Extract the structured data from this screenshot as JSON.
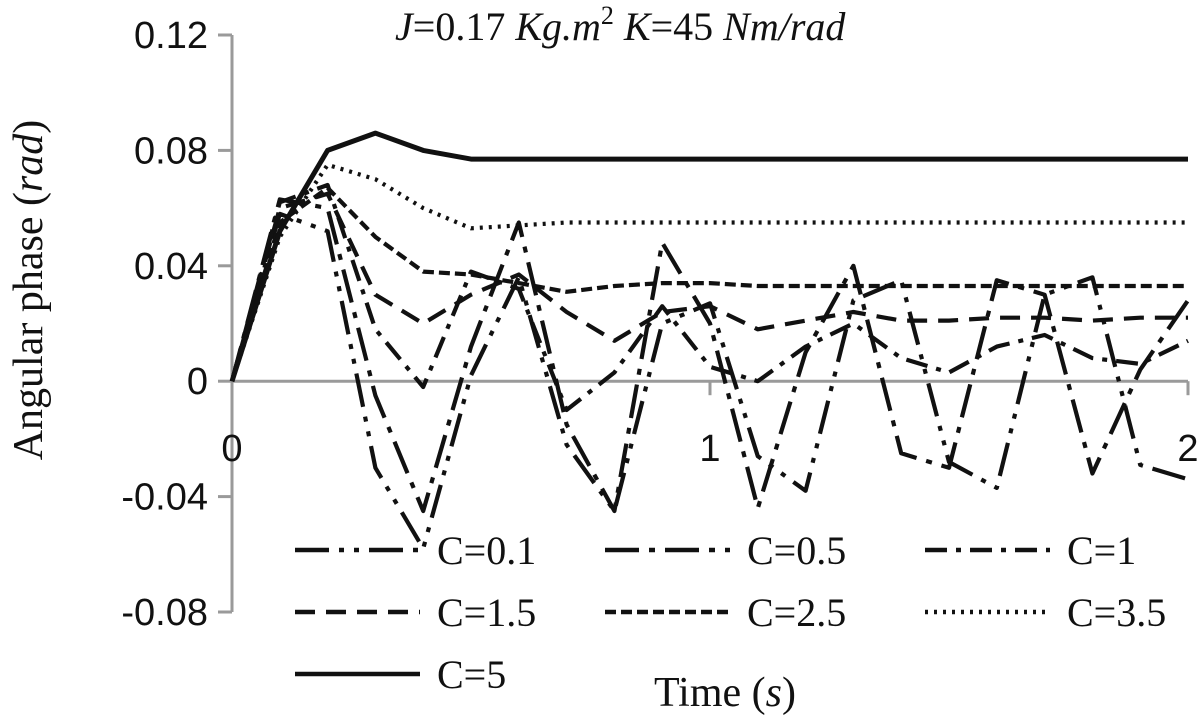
{
  "chart_data": {
    "type": "line",
    "title": "J=0.17 Kg.m² K=45 Nm/rad",
    "title_parts": {
      "j": "J",
      "j_value": "=0.17 ",
      "j_unit": "Kg.m",
      "j_exp": "2",
      "k": " K",
      "k_value": "=45 ",
      "k_unit": "Nm/rad"
    },
    "xlabel": "Time (s)",
    "xlabel_parts": {
      "text": "Time (",
      "unit": "s",
      "close": ")"
    },
    "ylabel": "Angular phase (rad)",
    "ylabel_parts": {
      "text": "Angular phase (",
      "unit": "rad",
      "close": ")"
    },
    "xlim": [
      0,
      2
    ],
    "ylim": [
      -0.08,
      0.12
    ],
    "x_ticks": [
      "0",
      "1",
      "2"
    ],
    "y_ticks": [
      "0.12",
      "0.08",
      "0.04",
      "0",
      "-0.04",
      "-0.08"
    ],
    "grid": false,
    "legend_position": "bottom",
    "series": [
      {
        "name": "C=0.1",
        "dash": "long-dash-dot-dot",
        "x": [
          0.0,
          0.1,
          0.2,
          0.3,
          0.4,
          0.5,
          0.6,
          0.7,
          0.8,
          0.9,
          1.0,
          1.1,
          1.2,
          1.3,
          1.4,
          1.5,
          1.6,
          1.7,
          1.8,
          1.9,
          2.0
        ],
        "y": [
          0.0,
          0.058,
          0.052,
          -0.03,
          -0.058,
          0.002,
          0.036,
          -0.022,
          -0.045,
          0.02,
          0.027,
          -0.026,
          -0.038,
          0.028,
          0.035,
          -0.028,
          -0.037,
          0.03,
          0.036,
          -0.029,
          -0.034
        ]
      },
      {
        "name": "C=0.5",
        "dash": "long-dash-dot",
        "x": [
          0.0,
          0.1,
          0.2,
          0.3,
          0.4,
          0.5,
          0.6,
          0.7,
          0.8,
          0.9,
          1.0,
          1.1,
          1.2,
          1.3,
          1.4,
          1.5,
          1.6,
          1.7,
          1.8,
          1.9,
          2.0
        ],
        "y": [
          0.0,
          0.063,
          0.06,
          -0.005,
          -0.045,
          0.012,
          0.055,
          -0.015,
          -0.045,
          0.048,
          0.02,
          -0.044,
          0.01,
          0.04,
          -0.025,
          -0.03,
          0.035,
          0.03,
          -0.032,
          0.004,
          0.028
        ]
      },
      {
        "name": "C=1",
        "dash": "dash-dot",
        "x": [
          0.0,
          0.1,
          0.2,
          0.3,
          0.4,
          0.5,
          0.6,
          0.7,
          0.8,
          0.9,
          1.0,
          1.1,
          1.2,
          1.3,
          1.4,
          1.5,
          1.6,
          1.7,
          1.8,
          1.9,
          2.0
        ],
        "y": [
          0.0,
          0.062,
          0.068,
          0.018,
          -0.002,
          0.038,
          0.032,
          -0.01,
          0.003,
          0.026,
          0.005,
          0.0,
          0.012,
          0.02,
          0.008,
          0.003,
          0.012,
          0.016,
          0.008,
          0.006,
          0.014
        ]
      },
      {
        "name": "C=1.5",
        "dash": "dash",
        "x": [
          0.0,
          0.1,
          0.2,
          0.3,
          0.4,
          0.5,
          0.6,
          0.7,
          0.8,
          0.9,
          1.0,
          1.1,
          1.2,
          1.3,
          1.4,
          1.5,
          1.6,
          1.7,
          1.8,
          1.9,
          2.0
        ],
        "y": [
          0.0,
          0.06,
          0.065,
          0.03,
          0.02,
          0.03,
          0.037,
          0.024,
          0.014,
          0.024,
          0.026,
          0.018,
          0.021,
          0.024,
          0.021,
          0.021,
          0.022,
          0.022,
          0.021,
          0.022,
          0.022
        ]
      },
      {
        "name": "C=2.5",
        "dash": "short-dash",
        "x": [
          0.0,
          0.1,
          0.2,
          0.3,
          0.4,
          0.5,
          0.6,
          0.7,
          0.8,
          0.9,
          1.0,
          1.1,
          1.2,
          1.3,
          1.4,
          1.5,
          1.6,
          1.7,
          1.8,
          1.9,
          2.0
        ],
        "y": [
          0.0,
          0.055,
          0.067,
          0.05,
          0.038,
          0.037,
          0.034,
          0.031,
          0.033,
          0.034,
          0.034,
          0.033,
          0.033,
          0.033,
          0.033,
          0.033,
          0.033,
          0.033,
          0.033,
          0.033,
          0.033
        ]
      },
      {
        "name": "C=3.5",
        "dash": "dot",
        "x": [
          0.0,
          0.1,
          0.2,
          0.3,
          0.4,
          0.5,
          0.6,
          0.7,
          0.8,
          0.9,
          1.0,
          1.1,
          1.2,
          1.3,
          1.4,
          1.5,
          1.6,
          1.7,
          1.8,
          1.9,
          2.0
        ],
        "y": [
          0.0,
          0.05,
          0.075,
          0.07,
          0.06,
          0.053,
          0.054,
          0.055,
          0.055,
          0.055,
          0.055,
          0.055,
          0.055,
          0.055,
          0.055,
          0.055,
          0.055,
          0.055,
          0.055,
          0.055,
          0.055
        ]
      },
      {
        "name": "C=5",
        "dash": "solid",
        "x": [
          0.0,
          0.1,
          0.2,
          0.3,
          0.4,
          0.5,
          0.6,
          0.7,
          0.8,
          0.9,
          1.0,
          1.1,
          1.2,
          1.3,
          1.4,
          1.5,
          1.6,
          1.7,
          1.8,
          1.9,
          2.0
        ],
        "y": [
          0.0,
          0.052,
          0.08,
          0.086,
          0.08,
          0.077,
          0.077,
          0.077,
          0.077,
          0.077,
          0.077,
          0.077,
          0.077,
          0.077,
          0.077,
          0.077,
          0.077,
          0.077,
          0.077,
          0.077,
          0.077
        ]
      }
    ],
    "styles": {
      "C=0.1": {
        "dasharray": "34,10,5,10,5,10"
      },
      "C=0.5": {
        "dasharray": "34,10,6,10"
      },
      "C=1": {
        "dasharray": "22,9,5,9"
      },
      "C=1.5": {
        "dasharray": "20,11"
      },
      "C=2.5": {
        "dasharray": "11,5"
      },
      "C=3.5": {
        "dasharray": "3,6"
      },
      "C=5": {
        "dasharray": ""
      }
    }
  }
}
